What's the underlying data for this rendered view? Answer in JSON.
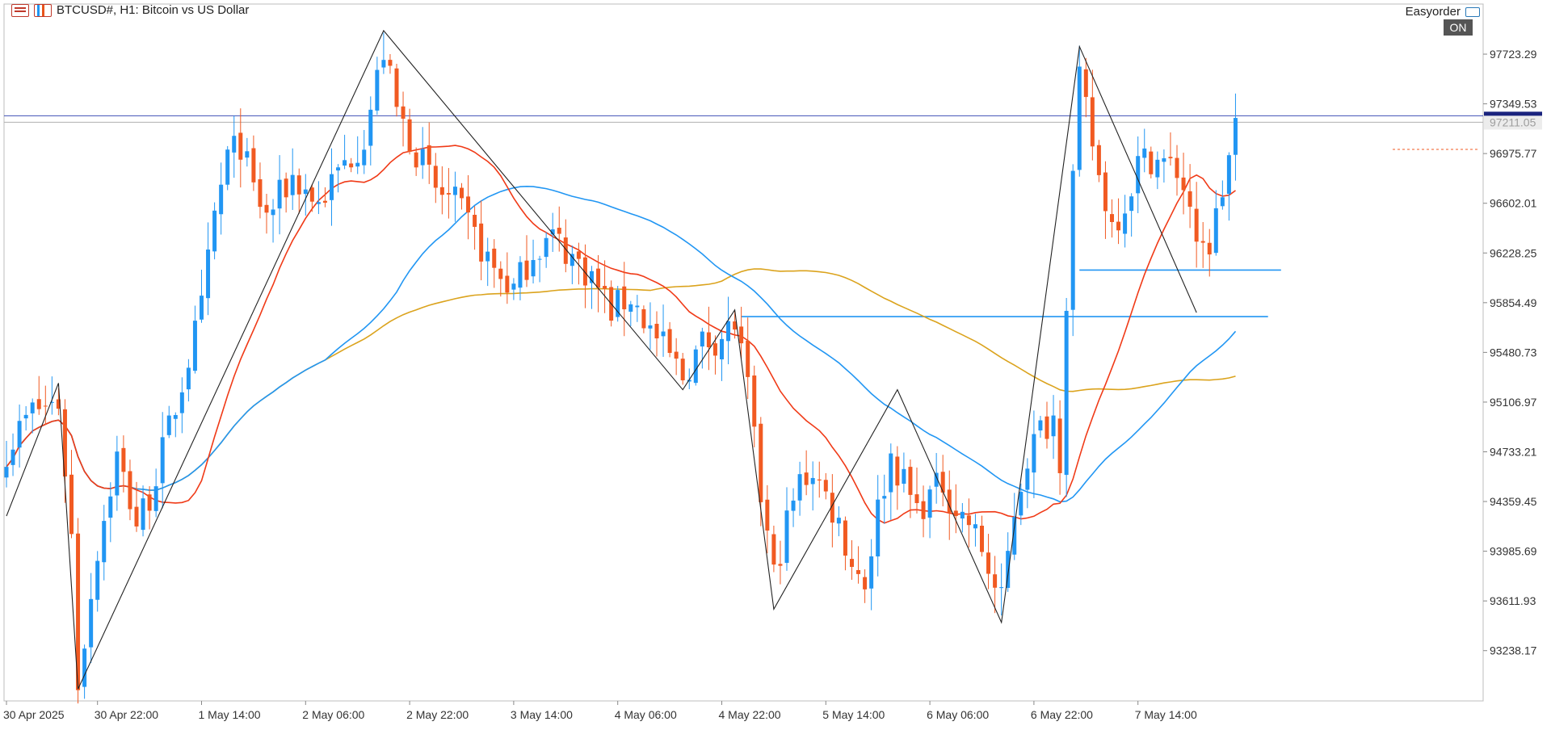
{
  "header": {
    "symbol_title": "BTCUSD#, H1:  Bitcoin vs US Dollar",
    "icons": [
      "menu-icon",
      "chart-bars-icon"
    ],
    "expert": "Easyorder",
    "expert_icon": "graduation-cap-icon",
    "autotrade_status": "ON"
  },
  "chart_data": {
    "type": "candlestick",
    "symbol": "BTCUSD#",
    "timeframe": "H1",
    "title": "Bitcoin vs US Dollar",
    "ylim": [
      92860,
      98100
    ],
    "price_ticks": [
      "97723.29",
      "97349.53",
      "96975.77",
      "96602.01",
      "96228.25",
      "95854.49",
      "95480.73",
      "95106.97",
      "94733.21",
      "94359.45",
      "93985.69",
      "93611.93",
      "93238.17"
    ],
    "time_ticks": [
      {
        "label": "30 Apr 2025",
        "bar": 0
      },
      {
        "label": "30 Apr 22:00",
        "bar": 14
      },
      {
        "label": "1 May 14:00",
        "bar": 30
      },
      {
        "label": "2 May 06:00",
        "bar": 46
      },
      {
        "label": "2 May 22:00",
        "bar": 62
      },
      {
        "label": "3 May 14:00",
        "bar": 78
      },
      {
        "label": "4 May 06:00",
        "bar": 94
      },
      {
        "label": "4 May 22:00",
        "bar": 110
      },
      {
        "label": "5 May 14:00",
        "bar": 126
      },
      {
        "label": "6 May 06:00",
        "bar": 142
      },
      {
        "label": "6 May 22:00",
        "bar": 158
      },
      {
        "label": "7 May 14:00",
        "bar": 174
      }
    ],
    "bid_price": "97211.05",
    "bid_line": 97211.05,
    "ask_line": 97260,
    "horizontal_lines": [
      {
        "price": 96100,
        "from_bar": 165,
        "to_bar": 196
      },
      {
        "price": 95750,
        "from_bar": 113,
        "to_bar": 194
      }
    ],
    "series": [
      {
        "name": "",
        "color": "#2196f3",
        "down_color": "#f15a22"
      },
      {
        "name": "",
        "color": "#f03a17",
        "period": 20
      },
      {
        "name": "",
        "color": "#2196f3",
        "period": 50
      },
      {
        "name": "",
        "color": "#dba31d",
        "period": 100
      }
    ],
    "zigzag": [
      {
        "bar": 0,
        "price": 94250
      },
      {
        "bar": 8,
        "price": 95250
      },
      {
        "bar": 11,
        "price": 92950
      },
      {
        "bar": 58,
        "price": 97900
      },
      {
        "bar": 104,
        "price": 95200
      },
      {
        "bar": 112,
        "price": 95800
      },
      {
        "bar": 118,
        "price": 93550
      },
      {
        "bar": 137,
        "price": 95200
      },
      {
        "bar": 153,
        "price": 93450
      },
      {
        "bar": 165,
        "price": 97780
      },
      {
        "bar": 183,
        "price": 95780
      }
    ],
    "path": [
      {
        "bar": 0,
        "price": 94750
      },
      {
        "bar": 4,
        "price": 95050
      },
      {
        "bar": 8,
        "price": 95100
      },
      {
        "bar": 10,
        "price": 94100
      },
      {
        "bar": 11,
        "price": 93000
      },
      {
        "bar": 14,
        "price": 94000
      },
      {
        "bar": 17,
        "price": 94700
      },
      {
        "bar": 20,
        "price": 94200
      },
      {
        "bar": 22,
        "price": 94400
      },
      {
        "bar": 25,
        "price": 94900
      },
      {
        "bar": 27,
        "price": 95250
      },
      {
        "bar": 30,
        "price": 95800
      },
      {
        "bar": 32,
        "price": 96500
      },
      {
        "bar": 34,
        "price": 96950
      },
      {
        "bar": 36,
        "price": 97050
      },
      {
        "bar": 38,
        "price": 96700
      },
      {
        "bar": 40,
        "price": 96500
      },
      {
        "bar": 44,
        "price": 96800
      },
      {
        "bar": 48,
        "price": 96600
      },
      {
        "bar": 52,
        "price": 96900
      },
      {
        "bar": 55,
        "price": 97100
      },
      {
        "bar": 58,
        "price": 97750
      },
      {
        "bar": 60,
        "price": 97300
      },
      {
        "bar": 62,
        "price": 97100
      },
      {
        "bar": 64,
        "price": 96900
      },
      {
        "bar": 66,
        "price": 96700
      },
      {
        "bar": 69,
        "price": 96600
      },
      {
        "bar": 72,
        "price": 96350
      },
      {
        "bar": 75,
        "price": 96100
      },
      {
        "bar": 78,
        "price": 95950
      },
      {
        "bar": 81,
        "price": 96250
      },
      {
        "bar": 84,
        "price": 96350
      },
      {
        "bar": 87,
        "price": 96200
      },
      {
        "bar": 90,
        "price": 96050
      },
      {
        "bar": 93,
        "price": 95800
      },
      {
        "bar": 96,
        "price": 95900
      },
      {
        "bar": 99,
        "price": 95650
      },
      {
        "bar": 102,
        "price": 95450
      },
      {
        "bar": 104,
        "price": 95300
      },
      {
        "bar": 107,
        "price": 95550
      },
      {
        "bar": 110,
        "price": 95600
      },
      {
        "bar": 112,
        "price": 95700
      },
      {
        "bar": 114,
        "price": 95200
      },
      {
        "bar": 116,
        "price": 94400
      },
      {
        "bar": 118,
        "price": 93800
      },
      {
        "bar": 120,
        "price": 94200
      },
      {
        "bar": 122,
        "price": 94500
      },
      {
        "bar": 124,
        "price": 94600
      },
      {
        "bar": 126,
        "price": 94400
      },
      {
        "bar": 128,
        "price": 94200
      },
      {
        "bar": 130,
        "price": 93900
      },
      {
        "bar": 132,
        "price": 93750
      },
      {
        "bar": 134,
        "price": 94300
      },
      {
        "bar": 136,
        "price": 94700
      },
      {
        "bar": 138,
        "price": 94500
      },
      {
        "bar": 140,
        "price": 94300
      },
      {
        "bar": 142,
        "price": 94400
      },
      {
        "bar": 144,
        "price": 94500
      },
      {
        "bar": 146,
        "price": 94300
      },
      {
        "bar": 148,
        "price": 94200
      },
      {
        "bar": 150,
        "price": 94000
      },
      {
        "bar": 152,
        "price": 93700
      },
      {
        "bar": 153,
        "price": 93600
      },
      {
        "bar": 155,
        "price": 94300
      },
      {
        "bar": 157,
        "price": 94700
      },
      {
        "bar": 159,
        "price": 94900
      },
      {
        "bar": 161,
        "price": 95000
      },
      {
        "bar": 162,
        "price": 94700
      },
      {
        "bar": 163,
        "price": 95900
      },
      {
        "bar": 164,
        "price": 96800
      },
      {
        "bar": 165,
        "price": 97500
      },
      {
        "bar": 166,
        "price": 97300
      },
      {
        "bar": 168,
        "price": 96800
      },
      {
        "bar": 170,
        "price": 96450
      },
      {
        "bar": 172,
        "price": 96600
      },
      {
        "bar": 174,
        "price": 96900
      },
      {
        "bar": 176,
        "price": 96950
      },
      {
        "bar": 178,
        "price": 96900
      },
      {
        "bar": 180,
        "price": 96850
      },
      {
        "bar": 182,
        "price": 96600
      },
      {
        "bar": 183,
        "price": 96200
      },
      {
        "bar": 185,
        "price": 96300
      },
      {
        "bar": 187,
        "price": 96700
      },
      {
        "bar": 189,
        "price": 97200
      }
    ]
  }
}
